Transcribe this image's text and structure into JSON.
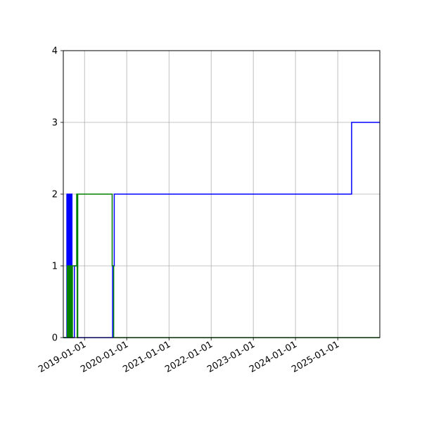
{
  "chart_data": {
    "type": "line",
    "title": "",
    "xlabel": "",
    "ylabel": "",
    "grid": true,
    "x_axis": {
      "type": "date",
      "range": [
        "2018-07-01",
        "2025-12-31"
      ],
      "ticks": [
        "2019-01-01",
        "2020-01-01",
        "2021-01-01",
        "2022-01-01",
        "2023-01-01",
        "2024-01-01",
        "2025-01-01"
      ],
      "tick_labels": [
        "2019-01-01",
        "2020-01-01",
        "2021-01-01",
        "2022-01-01",
        "2023-01-01",
        "2024-01-01",
        "2025-01-01"
      ]
    },
    "y_axis": {
      "range": [
        0,
        4
      ],
      "ticks": [
        0,
        1,
        2,
        3,
        4
      ],
      "tick_labels": [
        "0",
        "1",
        "2",
        "3",
        "4"
      ]
    },
    "series": [
      {
        "color": "#0000ff",
        "step": "post",
        "points": [
          [
            "2018-07-01",
            0
          ],
          [
            "2018-08-01",
            0
          ],
          [
            "2018-08-01",
            2
          ],
          [
            "2018-08-05",
            2
          ],
          [
            "2018-08-05",
            0
          ],
          [
            "2018-08-09",
            0
          ],
          [
            "2018-08-09",
            2
          ],
          [
            "2018-08-13",
            2
          ],
          [
            "2018-08-13",
            0
          ],
          [
            "2018-08-17",
            0
          ],
          [
            "2018-08-17",
            2
          ],
          [
            "2018-08-21",
            2
          ],
          [
            "2018-08-21",
            0
          ],
          [
            "2018-08-25",
            0
          ],
          [
            "2018-08-25",
            2
          ],
          [
            "2018-08-29",
            2
          ],
          [
            "2018-08-29",
            0
          ],
          [
            "2018-09-02",
            0
          ],
          [
            "2018-09-02",
            2
          ],
          [
            "2018-09-06",
            2
          ],
          [
            "2018-09-06",
            0
          ],
          [
            "2018-09-10",
            0
          ],
          [
            "2018-09-10",
            2
          ],
          [
            "2018-09-14",
            2
          ],
          [
            "2018-09-14",
            0
          ],
          [
            "2018-10-05",
            0
          ],
          [
            "2018-10-05",
            1
          ],
          [
            "2018-11-01",
            1
          ],
          [
            "2018-11-01",
            0
          ],
          [
            "2019-09-01",
            0
          ],
          [
            "2019-09-01",
            1
          ],
          [
            "2019-09-15",
            1
          ],
          [
            "2019-09-15",
            2
          ],
          [
            "2025-05-01",
            2
          ],
          [
            "2025-05-01",
            3
          ],
          [
            "2025-12-31",
            3
          ]
        ]
      },
      {
        "color": "#008000",
        "step": "post",
        "points": [
          [
            "2018-07-01",
            0
          ],
          [
            "2018-08-05",
            0
          ],
          [
            "2018-08-05",
            1
          ],
          [
            "2018-08-09",
            1
          ],
          [
            "2018-08-09",
            0
          ],
          [
            "2018-08-15",
            0
          ],
          [
            "2018-08-15",
            1
          ],
          [
            "2018-08-19",
            1
          ],
          [
            "2018-08-19",
            0
          ],
          [
            "2018-08-25",
            0
          ],
          [
            "2018-08-25",
            1
          ],
          [
            "2018-08-29",
            1
          ],
          [
            "2018-08-29",
            0
          ],
          [
            "2018-09-05",
            0
          ],
          [
            "2018-09-05",
            1
          ],
          [
            "2018-09-09",
            1
          ],
          [
            "2018-09-09",
            0
          ],
          [
            "2018-09-18",
            0
          ],
          [
            "2018-09-18",
            1
          ],
          [
            "2018-10-25",
            1
          ],
          [
            "2018-10-25",
            2
          ],
          [
            "2018-10-29",
            2
          ],
          [
            "2018-10-29",
            0
          ],
          [
            "2018-11-03",
            0
          ],
          [
            "2018-11-03",
            2
          ],
          [
            "2019-08-28",
            2
          ],
          [
            "2019-08-28",
            1
          ],
          [
            "2019-09-10",
            1
          ],
          [
            "2019-09-10",
            0
          ],
          [
            "2025-12-31",
            0
          ]
        ]
      }
    ]
  }
}
